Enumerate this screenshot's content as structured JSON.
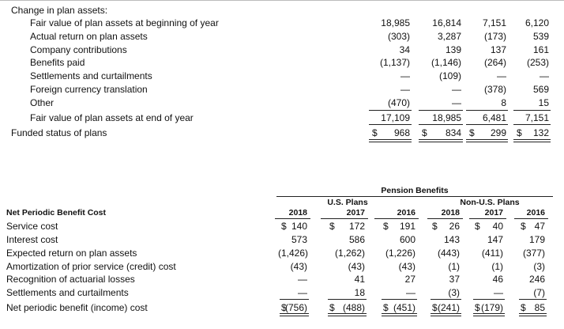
{
  "plan_assets": {
    "heading": "Change in plan assets:",
    "rows": [
      {
        "label": "Fair value of plan assets at beginning of year",
        "values": [
          "18,985",
          "16,814",
          "7,151",
          "6,120"
        ]
      },
      {
        "label": "Actual return on plan assets",
        "values": [
          "(303)",
          "3,287",
          "(173)",
          "539"
        ]
      },
      {
        "label": "Company contributions",
        "values": [
          "34",
          "139",
          "137",
          "161"
        ]
      },
      {
        "label": "Benefits paid",
        "values": [
          "(1,137)",
          "(1,146)",
          "(264)",
          "(253)"
        ]
      },
      {
        "label": "Settlements and curtailments",
        "values": [
          "—",
          "(109)",
          "—",
          "—"
        ]
      },
      {
        "label": "Foreign currency translation",
        "values": [
          "—",
          "—",
          "(378)",
          "569"
        ]
      },
      {
        "label": "Other",
        "values": [
          "(470)",
          "—",
          "8",
          "15"
        ]
      },
      {
        "label": "Fair value of plan assets at end of year",
        "values": [
          "17,109",
          "18,985",
          "6,481",
          "7,151"
        ]
      }
    ],
    "funded_status": {
      "label": "Funded status of plans",
      "currency": [
        "$",
        "$",
        "$",
        "$"
      ],
      "values": [
        "968",
        "834",
        "299",
        "132"
      ]
    }
  },
  "benefit_cost": {
    "group_header": "Pension Benefits",
    "plan_groups": [
      "U.S. Plans",
      "Non-U.S. Plans"
    ],
    "row_header": "Net Periodic Benefit Cost",
    "years": [
      "2018",
      "2017",
      "2016",
      "2018",
      "2017",
      "2016"
    ],
    "rows": [
      {
        "label": "Service cost",
        "currency": [
          "$",
          "$",
          "$",
          "$",
          "$",
          "$"
        ],
        "values": [
          "140",
          "172",
          "191",
          "26",
          "40",
          "47"
        ]
      },
      {
        "label": "Interest cost",
        "values": [
          "573",
          "586",
          "600",
          "143",
          "147",
          "179"
        ]
      },
      {
        "label": "Expected return on plan assets",
        "values": [
          "(1,426)",
          "(1,262)",
          "(1,226)",
          "(443)",
          "(411)",
          "(377)"
        ]
      },
      {
        "label": "Amortization of prior service (credit) cost",
        "values": [
          "(43)",
          "(43)",
          "(43)",
          "(1)",
          "(1)",
          "(3)"
        ]
      },
      {
        "label": "Recognition of actuarial losses",
        "values": [
          "—",
          "41",
          "27",
          "37",
          "46",
          "246"
        ]
      },
      {
        "label": "Settlements and curtailments",
        "values": [
          "—",
          "18",
          "—",
          "(3)",
          "—",
          "(7)"
        ]
      },
      {
        "label": "Net periodic benefit (income) cost",
        "currency": [
          "$",
          "$",
          "$",
          "$",
          "$",
          "$"
        ],
        "values": [
          "(756)",
          "(488)",
          "(451)",
          "(241)",
          "(179)",
          "85"
        ]
      }
    ]
  }
}
